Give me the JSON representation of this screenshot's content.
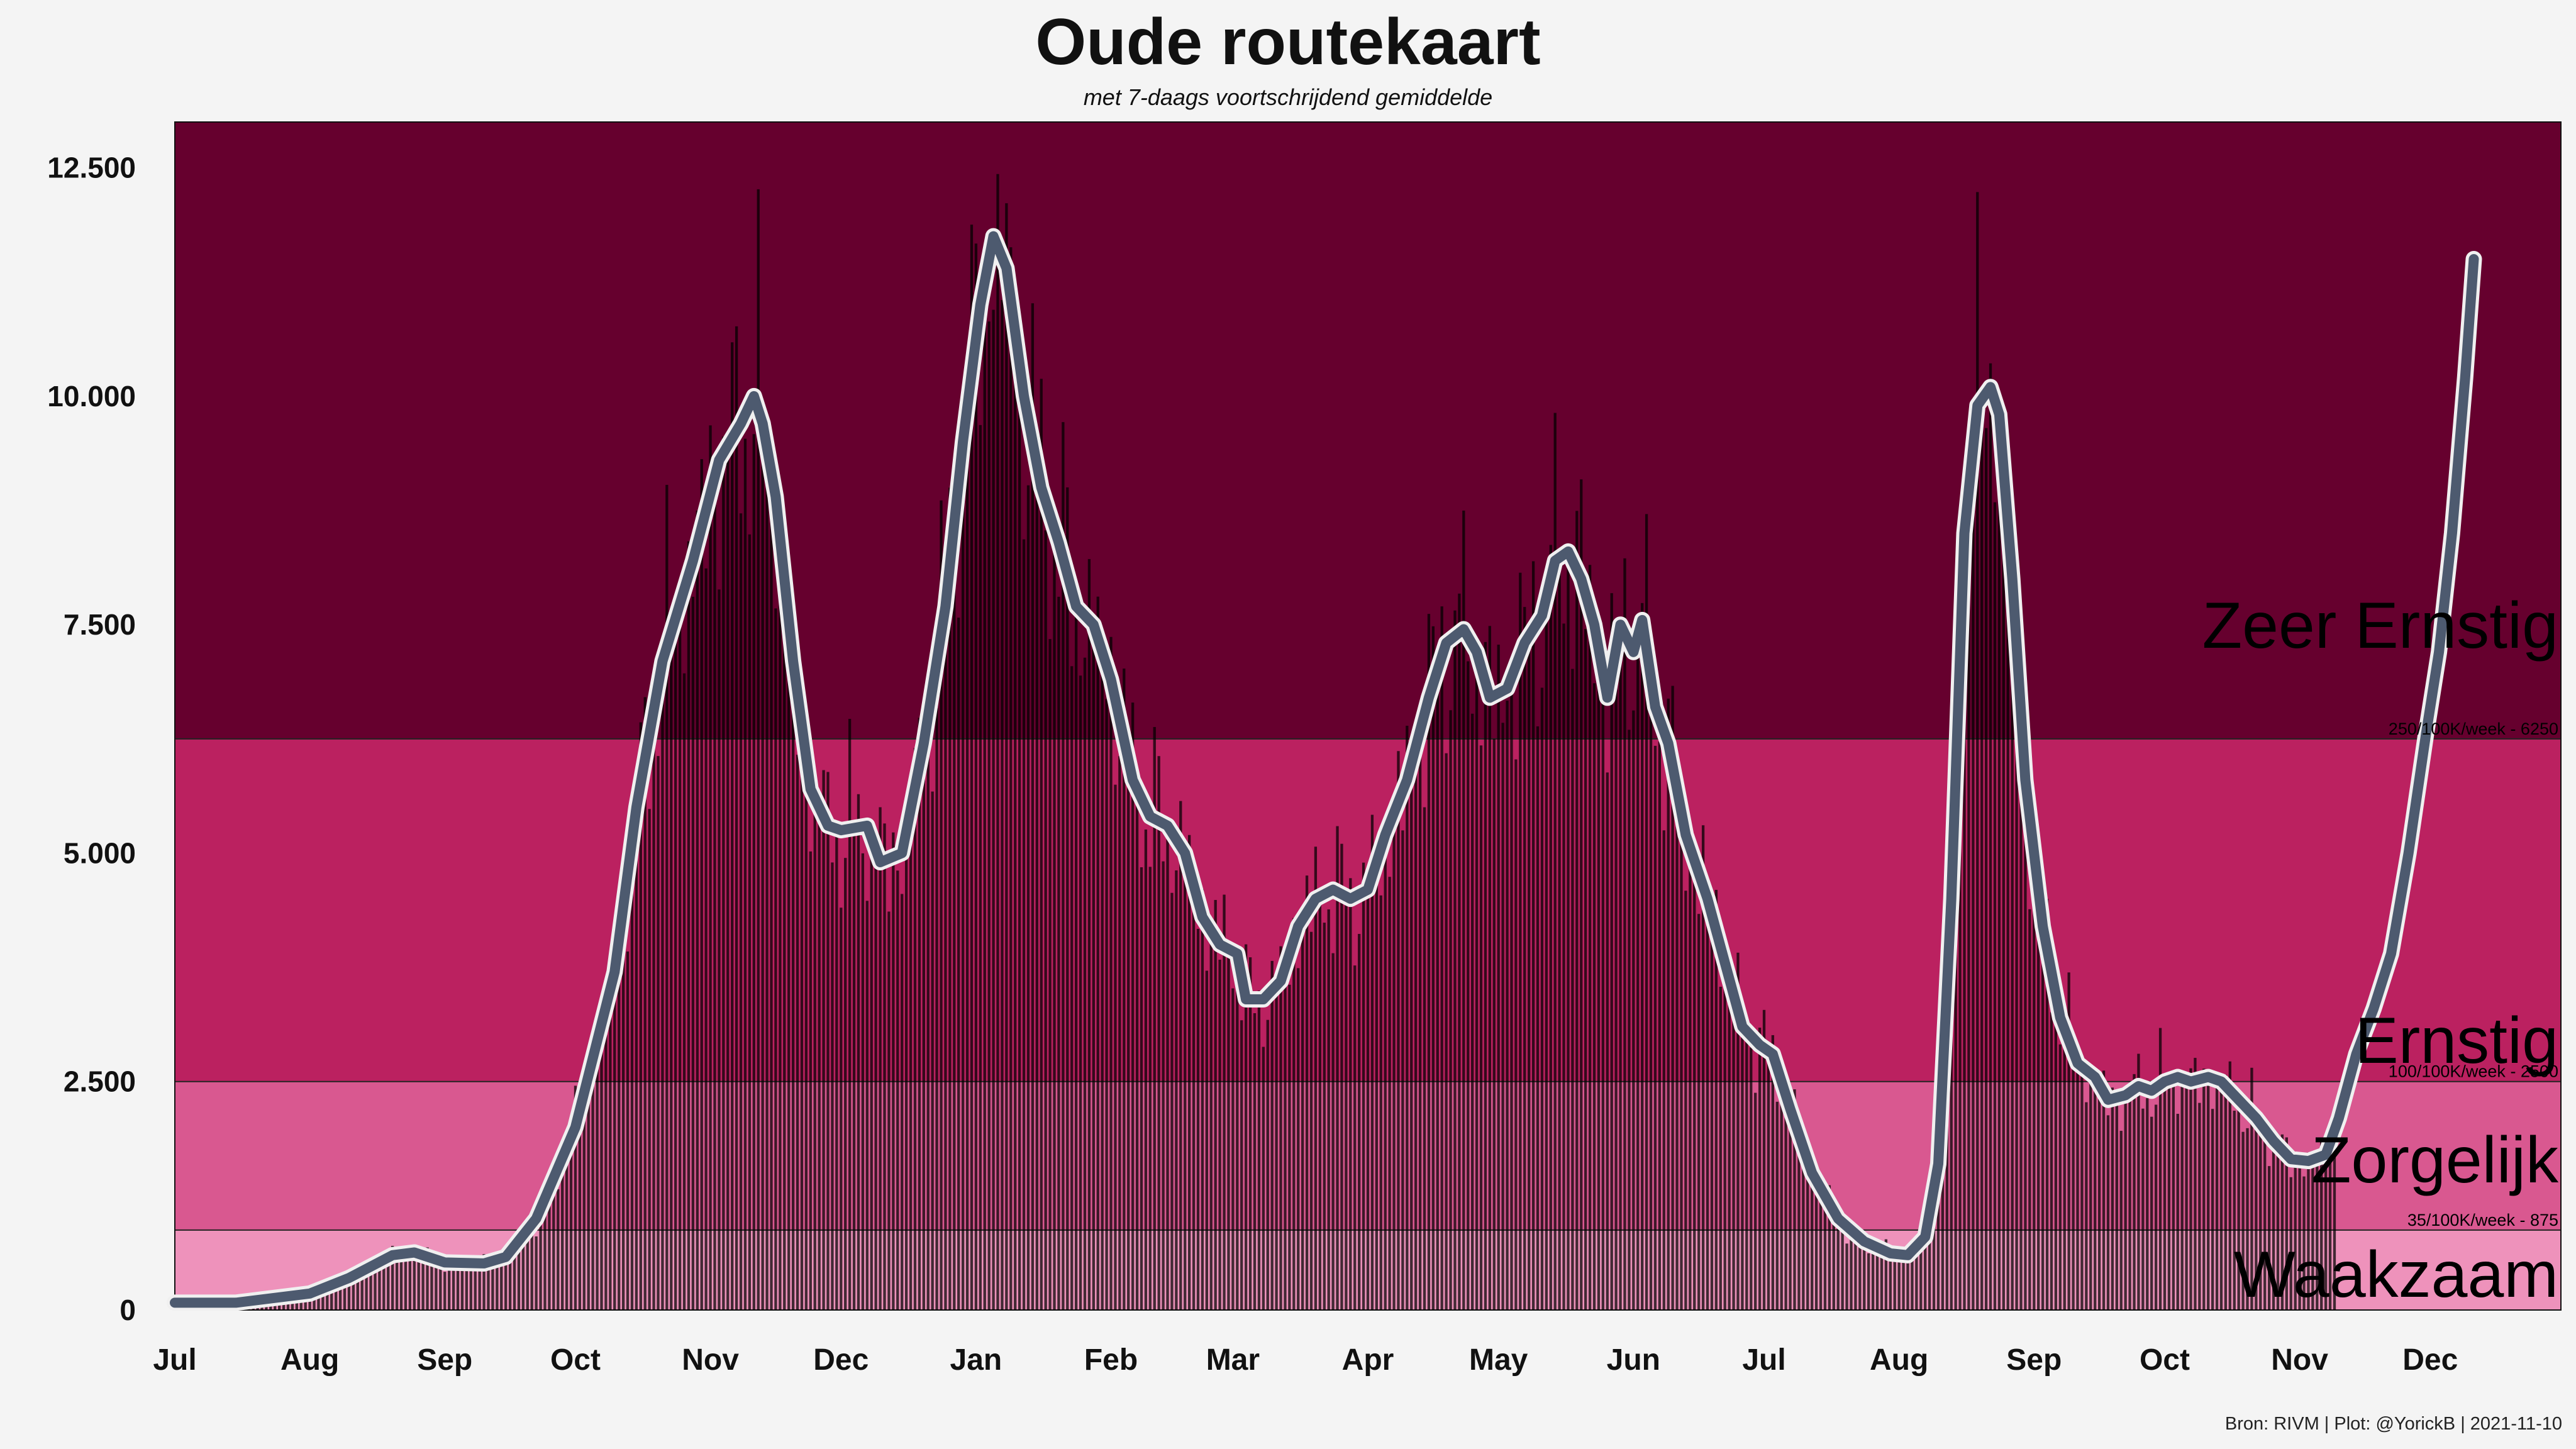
{
  "header": {
    "title": "Oude routekaart",
    "subtitle": "met 7-daags voortschrijdend gemiddelde"
  },
  "caption": "Bron: RIVM | Plot: @YorickB  |  2021-11-10",
  "colors": {
    "background": "#f4f4f4",
    "zone_zeer_ernstig": "#66002e",
    "zone_ernstig": "#bb2160",
    "zone_zorgelijk": "#d95890",
    "zone_waakzaam": "#ee92bb",
    "bars": "#000000",
    "line_outer": "#f0f0f0",
    "line_inner": "#4d5a6f"
  },
  "chart_data": {
    "type": "bar",
    "ylim": [
      0,
      13000
    ],
    "yticks": [
      0,
      2500,
      5000,
      7500,
      10000,
      12500
    ],
    "ytick_labels": [
      "0",
      "2.500",
      "5.000",
      "7.500",
      "10.000",
      "12.500"
    ],
    "x_start": "2020-07-01",
    "x_end": "2021-12-31",
    "data_end": "2021-11-09",
    "month_ticks": [
      {
        "date": "2020-07-01",
        "label": "Jul"
      },
      {
        "date": "2020-08-01",
        "label": "Aug"
      },
      {
        "date": "2020-09-01",
        "label": "Sep"
      },
      {
        "date": "2020-10-01",
        "label": "Oct"
      },
      {
        "date": "2020-11-01",
        "label": "Nov"
      },
      {
        "date": "2020-12-01",
        "label": "Dec"
      },
      {
        "date": "2021-01-01",
        "label": "Jan"
      },
      {
        "date": "2021-02-01",
        "label": "Feb"
      },
      {
        "date": "2021-03-01",
        "label": "Mar"
      },
      {
        "date": "2021-04-01",
        "label": "Apr"
      },
      {
        "date": "2021-05-01",
        "label": "May"
      },
      {
        "date": "2021-06-01",
        "label": "Jun"
      },
      {
        "date": "2021-07-01",
        "label": "Jul"
      },
      {
        "date": "2021-08-01",
        "label": "Aug"
      },
      {
        "date": "2021-09-01",
        "label": "Sep"
      },
      {
        "date": "2021-10-01",
        "label": "Oct"
      },
      {
        "date": "2021-11-01",
        "label": "Nov"
      },
      {
        "date": "2021-12-01",
        "label": "Dec"
      }
    ],
    "zones": [
      {
        "name": "Waakzaam",
        "from": 0,
        "to": 875,
        "threshold_label": ""
      },
      {
        "name": "Zorgelijk",
        "from": 875,
        "to": 2500,
        "threshold_label": "35/100K/week - 875"
      },
      {
        "name": "Ernstig",
        "from": 2500,
        "to": 6250,
        "threshold_label": "100/100K/week - 2500"
      },
      {
        "name": "Zeer Ernstig",
        "from": 6250,
        "to": 13000,
        "threshold_label": "250/100K/week - 6250"
      }
    ],
    "series": [
      {
        "kind": "7-day moving average",
        "points": [
          [
            "2020-07-01",
            80
          ],
          [
            "2020-07-15",
            80
          ],
          [
            "2020-08-01",
            180
          ],
          [
            "2020-08-10",
            350
          ],
          [
            "2020-08-20",
            600
          ],
          [
            "2020-08-25",
            630
          ],
          [
            "2020-09-01",
            520
          ],
          [
            "2020-09-10",
            510
          ],
          [
            "2020-09-15",
            580
          ],
          [
            "2020-09-22",
            1000
          ],
          [
            "2020-10-01",
            2000
          ],
          [
            "2020-10-10",
            3700
          ],
          [
            "2020-10-15",
            5500
          ],
          [
            "2020-10-21",
            7100
          ],
          [
            "2020-10-28",
            8200
          ],
          [
            "2020-11-03",
            9300
          ],
          [
            "2020-11-08",
            9700
          ],
          [
            "2020-11-11",
            10000
          ],
          [
            "2020-11-13",
            9700
          ],
          [
            "2020-11-16",
            8900
          ],
          [
            "2020-11-20",
            7100
          ],
          [
            "2020-11-24",
            5700
          ],
          [
            "2020-11-28",
            5300
          ],
          [
            "2020-12-01",
            5250
          ],
          [
            "2020-12-07",
            5300
          ],
          [
            "2020-12-10",
            4900
          ],
          [
            "2020-12-15",
            5000
          ],
          [
            "2020-12-20",
            6200
          ],
          [
            "2020-12-25",
            7700
          ],
          [
            "2020-12-29",
            9500
          ],
          [
            "2021-01-02",
            11000
          ],
          [
            "2021-01-05",
            11750
          ],
          [
            "2021-01-08",
            11400
          ],
          [
            "2021-01-12",
            10000
          ],
          [
            "2021-01-16",
            9000
          ],
          [
            "2021-01-20",
            8400
          ],
          [
            "2021-01-24",
            7700
          ],
          [
            "2021-01-28",
            7500
          ],
          [
            "2021-02-01",
            6900
          ],
          [
            "2021-02-06",
            5800
          ],
          [
            "2021-02-10",
            5400
          ],
          [
            "2021-02-14",
            5300
          ],
          [
            "2021-02-18",
            5000
          ],
          [
            "2021-02-22",
            4300
          ],
          [
            "2021-02-26",
            4000
          ],
          [
            "2021-03-02",
            3900
          ],
          [
            "2021-03-04",
            3400
          ],
          [
            "2021-03-08",
            3400
          ],
          [
            "2021-03-12",
            3600
          ],
          [
            "2021-03-16",
            4200
          ],
          [
            "2021-03-20",
            4500
          ],
          [
            "2021-03-24",
            4600
          ],
          [
            "2021-03-28",
            4500
          ],
          [
            "2021-04-01",
            4600
          ],
          [
            "2021-04-05",
            5200
          ],
          [
            "2021-04-10",
            5800
          ],
          [
            "2021-04-15",
            6700
          ],
          [
            "2021-04-19",
            7300
          ],
          [
            "2021-04-23",
            7450
          ],
          [
            "2021-04-26",
            7200
          ],
          [
            "2021-04-29",
            6700
          ],
          [
            "2021-05-03",
            6800
          ],
          [
            "2021-05-07",
            7300
          ],
          [
            "2021-05-11",
            7600
          ],
          [
            "2021-05-14",
            8200
          ],
          [
            "2021-05-17",
            8300
          ],
          [
            "2021-05-20",
            8000
          ],
          [
            "2021-05-23",
            7500
          ],
          [
            "2021-05-26",
            6700
          ],
          [
            "2021-05-29",
            7500
          ],
          [
            "2021-06-01",
            7200
          ],
          [
            "2021-06-03",
            7550
          ],
          [
            "2021-06-06",
            6600
          ],
          [
            "2021-06-09",
            6200
          ],
          [
            "2021-06-13",
            5200
          ],
          [
            "2021-06-18",
            4500
          ],
          [
            "2021-06-22",
            3800
          ],
          [
            "2021-06-26",
            3100
          ],
          [
            "2021-06-30",
            2900
          ],
          [
            "2021-07-03",
            2800
          ],
          [
            "2021-07-07",
            2200
          ],
          [
            "2021-07-12",
            1500
          ],
          [
            "2021-07-18",
            1000
          ],
          [
            "2021-07-24",
            750
          ],
          [
            "2021-07-30",
            620
          ],
          [
            "2021-08-03",
            600
          ],
          [
            "2021-08-07",
            800
          ],
          [
            "2021-08-10",
            1600
          ],
          [
            "2021-08-13",
            4500
          ],
          [
            "2021-08-16",
            8500
          ],
          [
            "2021-08-19",
            9900
          ],
          [
            "2021-08-22",
            10100
          ],
          [
            "2021-08-24",
            9800
          ],
          [
            "2021-08-27",
            8000
          ],
          [
            "2021-08-30",
            5800
          ],
          [
            "2021-09-03",
            4200
          ],
          [
            "2021-09-07",
            3200
          ],
          [
            "2021-09-11",
            2700
          ],
          [
            "2021-09-15",
            2550
          ],
          [
            "2021-09-18",
            2300
          ],
          [
            "2021-09-22",
            2350
          ],
          [
            "2021-09-25",
            2450
          ],
          [
            "2021-09-28",
            2400
          ],
          [
            "2021-10-01",
            2500
          ],
          [
            "2021-10-04",
            2550
          ],
          [
            "2021-10-07",
            2500
          ],
          [
            "2021-10-11",
            2550
          ],
          [
            "2021-10-14",
            2500
          ],
          [
            "2021-10-18",
            2300
          ],
          [
            "2021-10-22",
            2100
          ],
          [
            "2021-10-26",
            1850
          ],
          [
            "2021-10-30",
            1650
          ],
          [
            "2021-11-03",
            1630
          ],
          [
            "2021-11-07",
            1700
          ],
          [
            "2021-11-10",
            2100
          ],
          [
            "2021-11-14",
            2800
          ],
          [
            "2021-11-18",
            3300
          ],
          [
            "2021-11-22",
            3900
          ],
          [
            "2021-11-26",
            5000
          ],
          [
            "2021-11-30",
            6300
          ],
          [
            "2021-12-03",
            7200
          ],
          [
            "2021-12-06",
            8500
          ],
          [
            "2021-12-09",
            10200
          ],
          [
            "2021-12-11",
            11500
          ]
        ]
      }
    ],
    "bars_note": "daily values fluctuate around the moving average"
  }
}
